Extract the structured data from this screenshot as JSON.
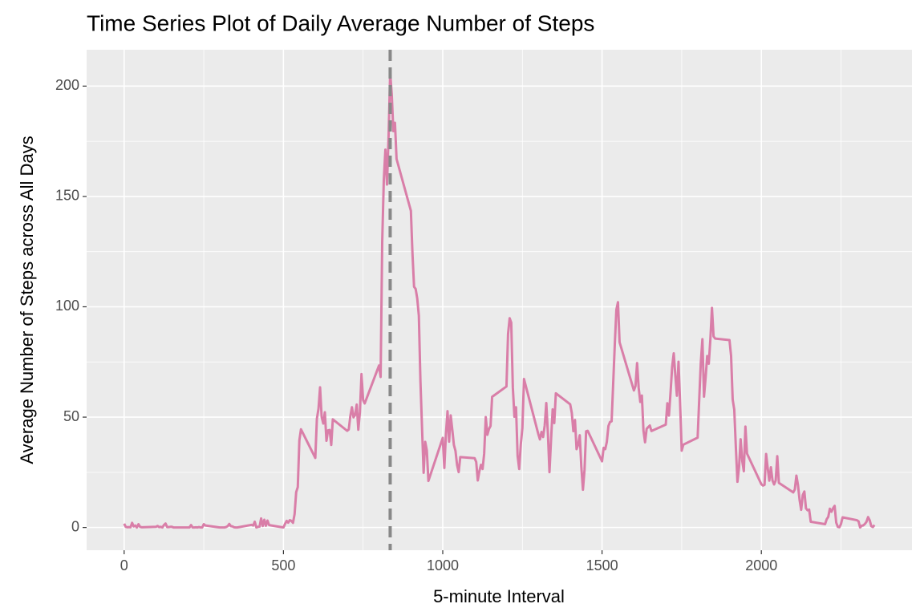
{
  "chart_data": {
    "type": "line",
    "title": "Time Series Plot of Daily Average Number of Steps",
    "x_label": "5-minute Interval",
    "y_label": "Average Number of Steps across All Days",
    "color": "#d97ea8",
    "vline_x": 835,
    "vline_color": "#888888",
    "grid": true,
    "xlim": [
      -117.75,
      2472.75
    ],
    "ylim": [
      -10.31,
      216.48
    ],
    "xticks": [
      0,
      500,
      1000,
      1500,
      2000
    ],
    "minor_xticks": [
      250,
      750,
      1250,
      1750,
      2250
    ],
    "yticks": [
      0,
      50,
      100,
      150,
      200
    ],
    "minor_yticks": [
      25,
      75,
      125,
      175
    ],
    "x": [
      0,
      5,
      10,
      15,
      20,
      25,
      30,
      35,
      40,
      45,
      50,
      55,
      100,
      105,
      110,
      115,
      120,
      125,
      130,
      135,
      140,
      145,
      150,
      155,
      200,
      205,
      210,
      215,
      220,
      225,
      230,
      235,
      240,
      245,
      250,
      255,
      300,
      305,
      310,
      315,
      320,
      325,
      330,
      335,
      340,
      345,
      350,
      355,
      400,
      405,
      410,
      415,
      420,
      425,
      430,
      435,
      440,
      445,
      450,
      455,
      500,
      505,
      510,
      515,
      520,
      525,
      530,
      535,
      540,
      545,
      550,
      555,
      600,
      605,
      610,
      615,
      620,
      625,
      630,
      635,
      640,
      645,
      650,
      655,
      700,
      705,
      710,
      715,
      720,
      725,
      730,
      735,
      740,
      745,
      750,
      755,
      800,
      805,
      810,
      815,
      820,
      825,
      830,
      835,
      840,
      845,
      850,
      855,
      900,
      905,
      910,
      915,
      920,
      925,
      930,
      935,
      940,
      945,
      950,
      955,
      1000,
      1005,
      1010,
      1015,
      1020,
      1025,
      1030,
      1035,
      1040,
      1045,
      1050,
      1055,
      1100,
      1105,
      1110,
      1115,
      1120,
      1125,
      1130,
      1135,
      1140,
      1145,
      1150,
      1155,
      1200,
      1205,
      1210,
      1215,
      1220,
      1225,
      1230,
      1235,
      1240,
      1245,
      1250,
      1255,
      1300,
      1305,
      1310,
      1315,
      1320,
      1325,
      1330,
      1335,
      1340,
      1345,
      1350,
      1355,
      1400,
      1405,
      1410,
      1415,
      1420,
      1425,
      1430,
      1435,
      1440,
      1445,
      1450,
      1455,
      1500,
      1505,
      1510,
      1515,
      1520,
      1525,
      1530,
      1535,
      1540,
      1545,
      1550,
      1555,
      1600,
      1605,
      1610,
      1615,
      1620,
      1625,
      1630,
      1635,
      1640,
      1645,
      1650,
      1655,
      1700,
      1705,
      1710,
      1715,
      1720,
      1725,
      1730,
      1735,
      1740,
      1745,
      1750,
      1755,
      1800,
      1805,
      1810,
      1815,
      1820,
      1825,
      1830,
      1835,
      1840,
      1845,
      1850,
      1855,
      1900,
      1905,
      1910,
      1915,
      1920,
      1925,
      1930,
      1935,
      1940,
      1945,
      1950,
      1955,
      2000,
      2005,
      2010,
      2015,
      2020,
      2025,
      2030,
      2035,
      2040,
      2045,
      2050,
      2055,
      2100,
      2105,
      2110,
      2115,
      2120,
      2125,
      2130,
      2135,
      2140,
      2145,
      2150,
      2155,
      2200,
      2205,
      2210,
      2215,
      2220,
      2225,
      2230,
      2235,
      2240,
      2245,
      2250,
      2255,
      2300,
      2305,
      2310,
      2315,
      2320,
      2325,
      2330,
      2335,
      2340,
      2345,
      2350,
      2355
    ],
    "values": [
      1.7,
      0.3,
      0.1,
      0.2,
      0.1,
      2.1,
      0.5,
      0.9,
      0,
      1.5,
      0.3,
      0.1,
      0.3,
      0.7,
      0.2,
      0.3,
      0,
      1.1,
      1.8,
      0.2,
      0.2,
      0.3,
      0.3,
      0,
      0,
      0,
      1.1,
      0,
      0,
      0.1,
      0,
      0.2,
      0,
      0,
      1.5,
      0.9,
      0,
      0,
      0,
      0,
      0.2,
      0.6,
      1.6,
      0.6,
      0.5,
      0.1,
      0,
      0,
      1.2,
      0.9,
      2.6,
      0,
      0.3,
      0.4,
      4.1,
      0.7,
      3.5,
      0.8,
      3.1,
      1.1,
      0,
      1.6,
      3.0,
      2.2,
      3.3,
      3.0,
      2.1,
      6.1,
      16.0,
      18.3,
      39.5,
      44.5,
      31.5,
      49.3,
      53.8,
      63.5,
      50.0,
      47.1,
      52.2,
      39.3,
      44.0,
      44.2,
      37.4,
      49.0,
      43.8,
      44.4,
      50.5,
      54.5,
      49.9,
      51.0,
      55.7,
      44.3,
      52.3,
      69.5,
      57.8,
      56.2,
      73.4,
      68.2,
      129.4,
      157.5,
      171.2,
      155.4,
      177.3,
      206.2,
      195.9,
      179.6,
      183.4,
      167.0,
      143.5,
      124.0,
      109.1,
      108.1,
      103.7,
      95.97,
      66.2,
      45.2,
      24.8,
      38.8,
      34.98,
      21.1,
      40.6,
      26.98,
      42.4,
      52.7,
      38.9,
      50.8,
      44.3,
      37.4,
      34.7,
      28.3,
      25.1,
      31.9,
      31.4,
      29.7,
      21.3,
      25.5,
      28.4,
      26.5,
      33.4,
      50.0,
      42.0,
      44.6,
      46.0,
      59.2,
      63.9,
      87.7,
      94.8,
      92.8,
      63.4,
      50.2,
      54.5,
      32.4,
      26.5,
      37.7,
      45.1,
      67.3,
      42.3,
      39.9,
      43.3,
      40.98,
      46.2,
      56.4,
      42.8,
      25.1,
      39.97,
      53.5,
      47.3,
      60.8,
      55.8,
      51.96,
      43.6,
      48.7,
      35.5,
      37.5,
      41.8,
      27.5,
      17.1,
      26.1,
      43.6,
      43.8,
      30.0,
      36.1,
      35.5,
      38.8,
      45.96,
      47.8,
      48.1,
      65.3,
      82.9,
      98.7,
      102.1,
      83.96,
      62.1,
      64.1,
      74.5,
      63.2,
      56.9,
      59.8,
      43.9,
      38.6,
      44.7,
      45.5,
      46.2,
      43.7,
      46.6,
      56.3,
      50.7,
      61.2,
      72.7,
      78.9,
      68.9,
      59.7,
      75.1,
      56.5,
      34.8,
      37.5,
      40.7,
      58.0,
      74.7,
      85.3,
      59.3,
      67.8,
      77.7,
      74.2,
      85.3,
      99.5,
      86.6,
      85.6,
      84.9,
      77.8,
      58.0,
      53.4,
      36.3,
      20.7,
      27.4,
      40.0,
      30.2,
      25.5,
      45.7,
      33.5,
      19.6,
      19.0,
      19.3,
      33.3,
      26.8,
      21.2,
      27.3,
      21.3,
      19.5,
      21.3,
      32.3,
      20.2,
      15.9,
      17.2,
      23.5,
      19.2,
      12.5,
      8.0,
      14.7,
      16.3,
      8.7,
      7.8,
      8.1,
      2.6,
      1.5,
      3.7,
      4.8,
      8.5,
      7.1,
      8.7,
      9.8,
      2.2,
      0.3,
      0.1,
      1.6,
      4.6,
      3.3,
      2.8,
      0,
      0.8,
      0.96,
      1.6,
      2.6,
      4.7,
      3.3,
      0.6,
      0.2,
      1.1
    ]
  }
}
